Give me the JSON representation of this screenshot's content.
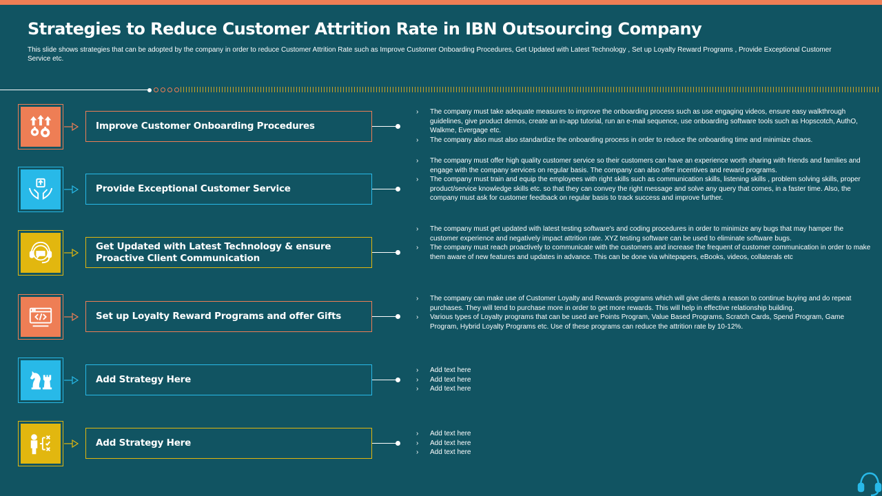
{
  "slide": {
    "title": "Strategies to Reduce Customer Attrition Rate in IBN Outsourcing Company",
    "subtitle": "This slide shows strategies that can be adopted by the company in order to reduce Customer Attrition Rate such as Improve Customer Onboarding Procedures, Get Updated with Latest Technology , Set up Loyalty Reward Programs , Provide Exceptional Customer Service etc.",
    "colors": {
      "background": "#115462",
      "top_bar": "#EE7E55",
      "orange": "#EE7E55",
      "cyan": "#28B9E8",
      "yellow": "#E2B70F"
    }
  },
  "strategies": [
    {
      "label": "Improve Customer Onboarding Procedures",
      "icon": "gears-arrows-icon",
      "color": "orange",
      "bullets": [
        "The company must take adequate measures to improve the onboarding process such as use engaging videos, ensure easy walkthrough guidelines, give product demos, create an in-app tutorial, run an e-mail sequence, use onboarding software tools such as Hopscotch, AuthO, Walkme, Evergage etc.",
        "The company also must also standardize the onboarding process in order to reduce the onboarding time and minimize chaos."
      ]
    },
    {
      "label": "Provide Exceptional Customer Service",
      "icon": "hands-care-icon",
      "color": "cyan",
      "bullets": [
        "The company must offer high quality customer service so their customers can have an experience worth sharing with friends and families and engage with the company services on regular basis. The company can also offer incentives and reward programs.",
        "The company must train and equip the employees with right skills such as communication skills, listening skills , problem solving skills, proper product/service knowledge skills etc. so that they can convey the right message and solve any query that comes, in a faster time. Also, the company must ask for customer feedback on regular basis to track success and improve further."
      ]
    },
    {
      "label": "Get Updated with Latest Technology & ensure Proactive Client Communication",
      "icon": "headset-support-icon",
      "color": "yellow",
      "bullets": [
        "The company must get updated with latest testing software's and coding procedures in order to minimize any bugs that may hamper the customer experience and negatively impact attrition rate. XYZ testing software can be used to eliminate software bugs.",
        "The company must reach proactively to communicate with the customers and increase the frequent of customer communication in order to make them aware of new features and updates in advance. This can be done via whitepapers, eBooks, videos, collaterals etc"
      ]
    },
    {
      "label": "Set up Loyalty Reward Programs and offer Gifts",
      "icon": "code-window-icon",
      "color": "orange",
      "bullets": [
        "The company can make use of Customer Loyalty and Rewards programs which will give clients a reason to continue buying and do repeat purchases. They will tend to purchase more in order to get more rewards. This will help in effective relationship building.",
        "Various types of Loyalty programs that can be used are Points Program, Value Based Programs, Scratch Cards, Spend Program, Game Program, Hybrid Loyalty Programs etc. Use of these programs can reduce the attrition rate by 10-12%."
      ]
    },
    {
      "label": "Add Strategy Here",
      "icon": "chess-pieces-icon",
      "color": "cyan",
      "bullets": [
        "Add text here",
        "Add text here",
        "Add text here"
      ]
    },
    {
      "label": "Add Strategy Here",
      "icon": "strategy-plan-icon",
      "color": "yellow",
      "bullets": [
        "Add text here",
        "Add text here",
        "Add text here"
      ]
    }
  ],
  "corner": {
    "icon": "headset-icon"
  }
}
